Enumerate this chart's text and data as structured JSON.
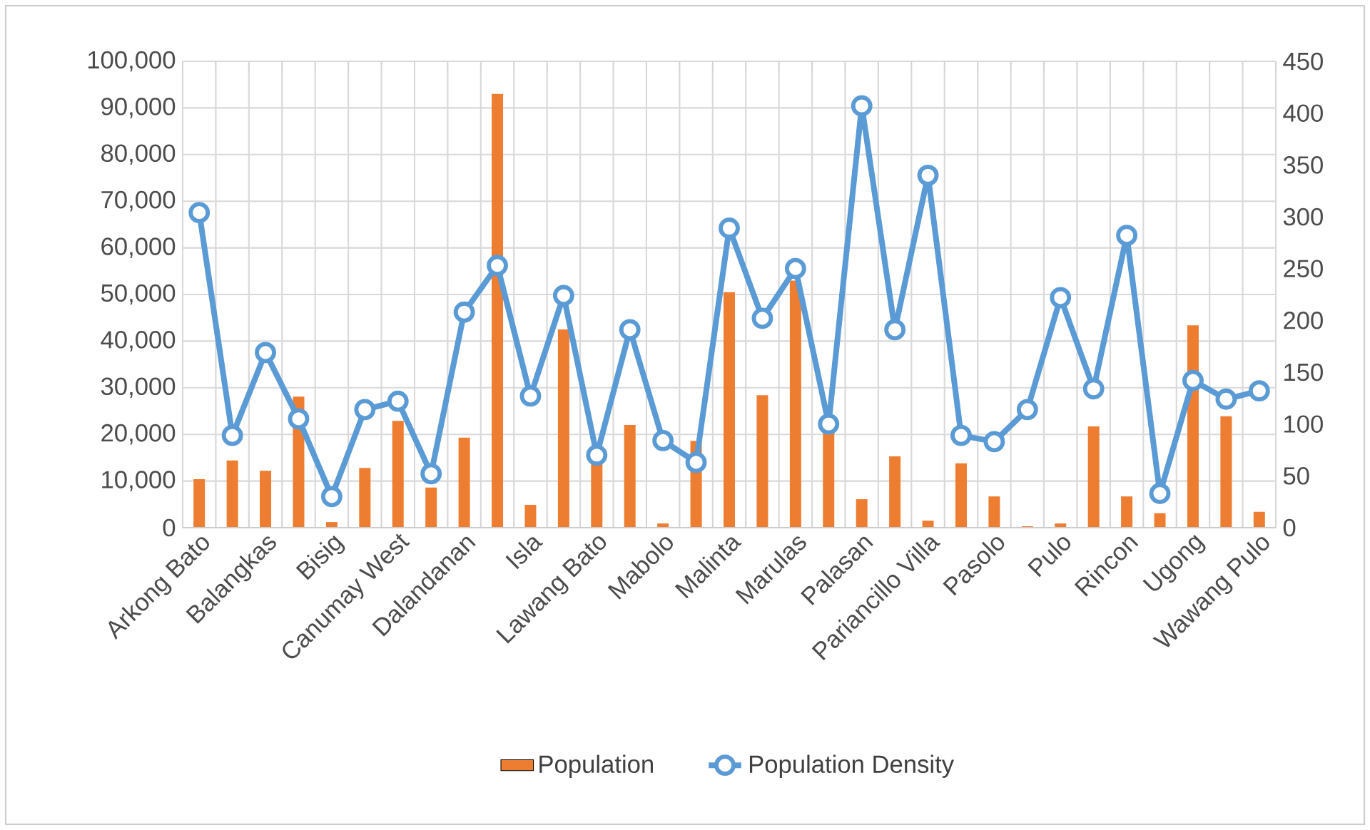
{
  "chart_data": {
    "type": "bar",
    "categories": [
      "Arkong Bato",
      null,
      "Balangkas",
      null,
      "Bisig",
      null,
      "Canumay West",
      null,
      "Dalandanan",
      null,
      "Isla",
      null,
      "Lawang Bato",
      null,
      "Mabolo",
      null,
      "Malinta",
      null,
      "Marulas",
      null,
      "Palasan",
      null,
      "Pariancillo Villa",
      null,
      "Pasolo",
      null,
      "Pulo",
      null,
      "Rincon",
      null,
      "Ugong",
      null,
      "Wawang Pulo"
    ],
    "series": [
      {
        "name": "Population",
        "color": "#ed7d31",
        "values": [
          10400,
          14400,
          12200,
          28100,
          1200,
          12800,
          22900,
          8600,
          19300,
          93000,
          4900,
          42500,
          14000,
          22000,
          900,
          18600,
          50500,
          28400,
          53000,
          20500,
          6100,
          15300,
          1500,
          13800,
          6700,
          300,
          900,
          21700,
          6700,
          3100,
          43400,
          23900,
          3400
        ]
      },
      {
        "name": "Population Density",
        "type": "line",
        "axis": "y2",
        "color": "#5b9bd5",
        "marker": "circle",
        "values": [
          304,
          89,
          169,
          105,
          30,
          114,
          122,
          52,
          208,
          253,
          127,
          224,
          70,
          191,
          84,
          63,
          289,
          202,
          250,
          100,
          407,
          191,
          340,
          89,
          83,
          114,
          222,
          134,
          282,
          33,
          142,
          124,
          132
        ]
      }
    ],
    "ylim": [
      0,
      100000
    ],
    "yticks": [
      0,
      {
        "value": 10000,
        "label": "10,000"
      },
      {
        "value": 20000,
        "label": "20,000"
      },
      {
        "value": 30000,
        "label": "30,000"
      },
      {
        "value": 40000,
        "label": "40,000"
      },
      {
        "value": 50000,
        "label": "50,000"
      },
      {
        "value": 60000,
        "label": "60,000"
      },
      {
        "value": 70000,
        "label": "70,000"
      },
      {
        "value": 80000,
        "label": "80,000"
      },
      {
        "value": 90000,
        "label": "90,000"
      },
      {
        "value": 100000,
        "label": "100,000"
      }
    ],
    "y2lim": [
      0,
      450
    ],
    "y2ticks": [
      0,
      50,
      100,
      150,
      200,
      250,
      300,
      350,
      400,
      450
    ],
    "grid": true,
    "legend": "bottom"
  }
}
